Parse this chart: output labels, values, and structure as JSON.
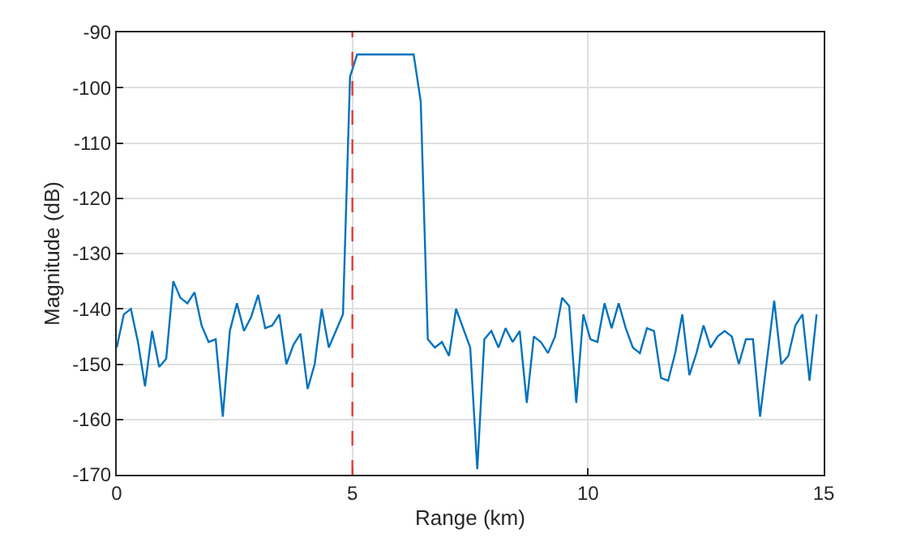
{
  "chart_data": {
    "type": "line",
    "xlabel": "Range (km)",
    "ylabel": "Magnitude (dB)",
    "x": [
      0,
      0.15,
      0.3,
      0.45,
      0.6,
      0.75,
      0.9,
      1.05,
      1.2,
      1.35,
      1.5,
      1.65,
      1.8,
      1.95,
      2.1,
      2.25,
      2.4,
      2.55,
      2.7,
      2.85,
      3,
      3.15,
      3.3,
      3.45,
      3.6,
      3.75,
      3.9,
      4.05,
      4.2,
      4.35,
      4.5,
      4.65,
      4.8,
      4.95,
      5.1,
      5.25,
      5.4,
      5.55,
      5.7,
      5.85,
      6,
      6.15,
      6.3,
      6.45,
      6.6,
      6.75,
      6.9,
      7.05,
      7.2,
      7.35,
      7.5,
      7.65,
      7.8,
      7.95,
      8.1,
      8.25,
      8.4,
      8.55,
      8.7,
      8.85,
      9,
      9.15,
      9.3,
      9.45,
      9.6,
      9.75,
      9.9,
      10.05,
      10.2,
      10.35,
      10.5,
      10.65,
      10.8,
      10.95,
      11.1,
      11.25,
      11.4,
      11.55,
      11.7,
      11.85,
      12,
      12.15,
      12.3,
      12.45,
      12.6,
      12.75,
      12.9,
      13.05,
      13.2,
      13.35,
      13.5,
      13.65,
      13.8,
      13.95,
      14.1,
      14.25,
      14.4,
      14.55,
      14.7,
      14.85
    ],
    "series": [
      {
        "color": "#0072bd",
        "values": [
          -147,
          -141,
          -140,
          -146,
          -154,
          -144,
          -150.5,
          -149,
          -135,
          -138,
          -139,
          -137,
          -143,
          -146,
          -145.5,
          -159.5,
          -144,
          -139,
          -144,
          -141.5,
          -137.5,
          -143.5,
          -143,
          -141,
          -150,
          -146.5,
          -144.5,
          -154.5,
          -150,
          -140,
          -147,
          -144,
          -141,
          -98,
          -94,
          -94,
          -94,
          -94,
          -94,
          -94,
          -94,
          -94,
          -94,
          -102.5,
          -145.5,
          -147,
          -146,
          -148.5,
          -140,
          -143.5,
          -147,
          -169,
          -145.5,
          -144,
          -147,
          -143.5,
          -146,
          -144,
          -157,
          -145,
          -146,
          -148,
          -145,
          -138,
          -139.5,
          -157,
          -141,
          -145.5,
          -146,
          -139,
          -143.5,
          -139,
          -143.5,
          -147,
          -148,
          -143.5,
          -144,
          -152.5,
          -153,
          -148,
          -141,
          -152,
          -148,
          -143,
          -147,
          -145,
          -144,
          -145,
          -150,
          -145.5,
          -145.5,
          -159.5,
          -149,
          -138.5,
          -150,
          -148.5,
          -143,
          -141,
          -153,
          -141
        ]
      }
    ],
    "xlim": [
      0,
      15
    ],
    "xticks": [
      0,
      5,
      10,
      15
    ],
    "ylim": [
      -170,
      -90
    ],
    "yticks": [
      -170,
      -160,
      -150,
      -140,
      -130,
      -120,
      -110,
      -100,
      -90
    ],
    "grid": true,
    "marker": "none",
    "line_style": "solid",
    "ref_lines": [
      {
        "axis": "x",
        "value": 5,
        "color": "#d9413a",
        "line_style": "dashed"
      }
    ]
  }
}
